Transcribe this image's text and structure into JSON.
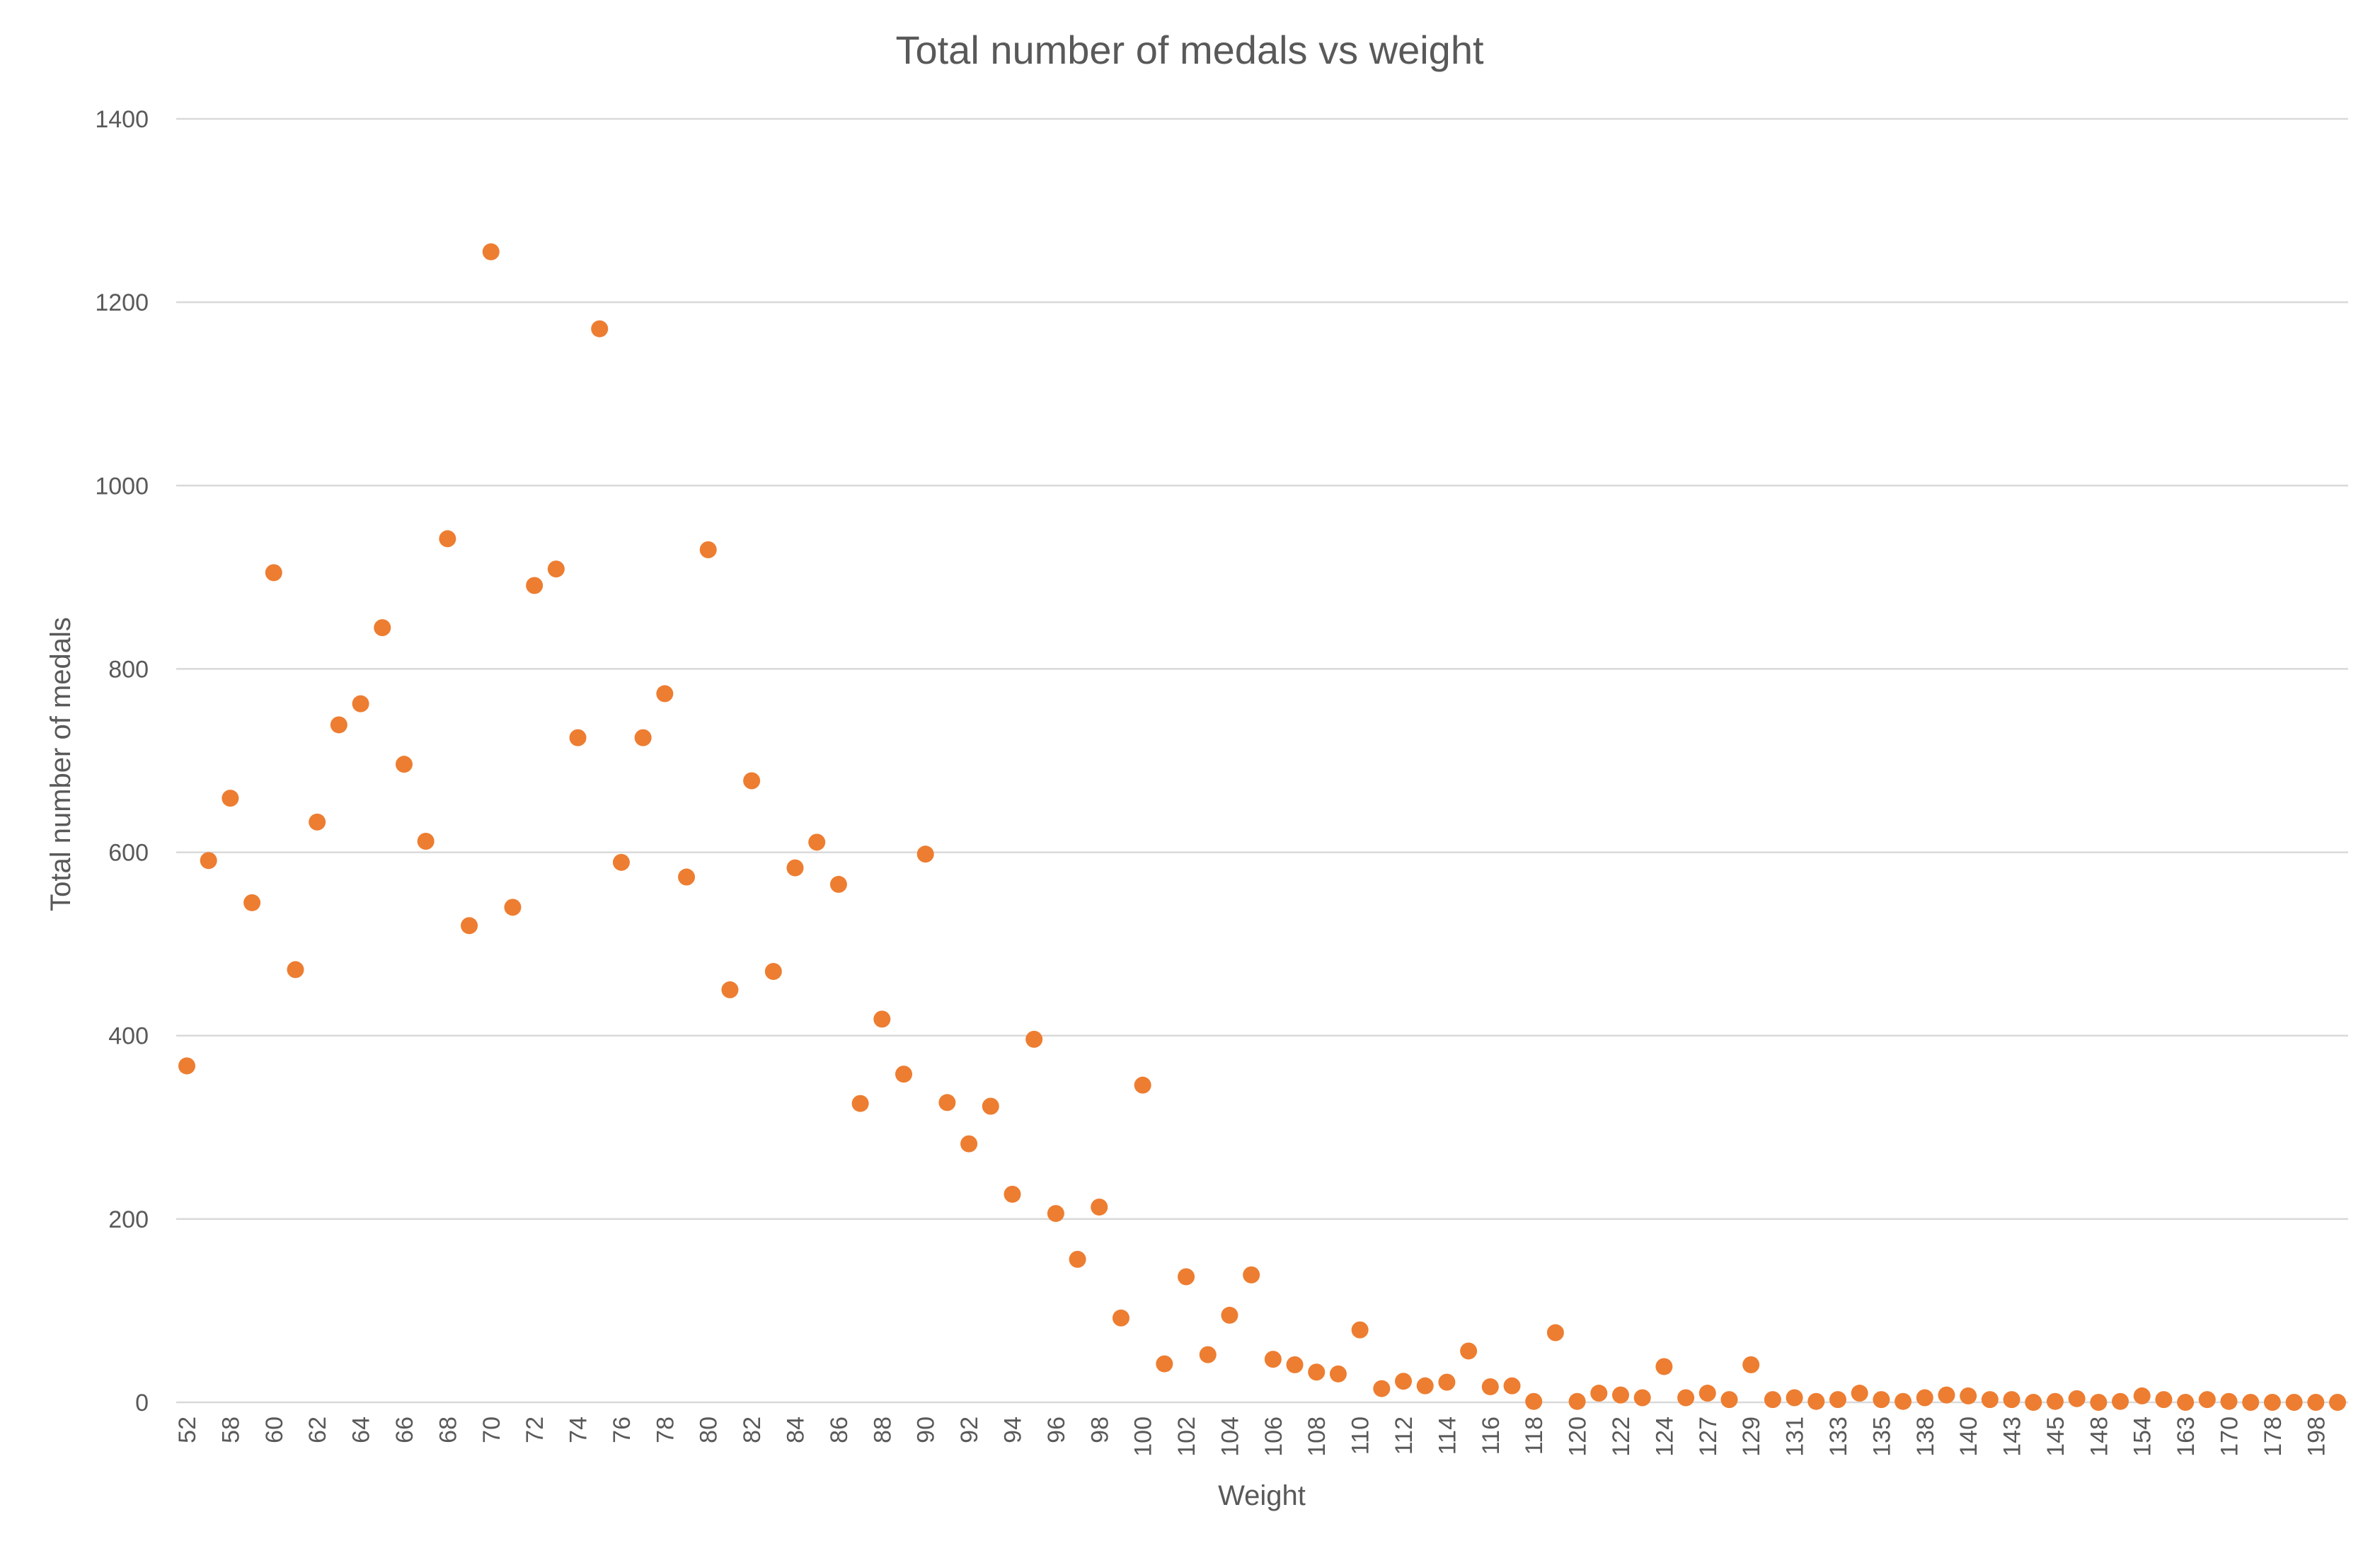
{
  "chart_data": {
    "type": "scatter",
    "title": "Total number of medals vs weight",
    "xlabel": "Weight",
    "ylabel": "Total number of medals",
    "ylim": [
      0,
      1400
    ],
    "yticks": [
      "0",
      "200",
      "400",
      "600",
      "800",
      "1000",
      "1200",
      "1400"
    ],
    "grid": true,
    "legend": "none",
    "x_axis_kind": "category",
    "x_tick_labels": [
      "52",
      "58",
      "60",
      "62",
      "64",
      "66",
      "68",
      "70",
      "72",
      "74",
      "76",
      "78",
      "80",
      "82",
      "84",
      "86",
      "88",
      "90",
      "92",
      "94",
      "96",
      "98",
      "100",
      "102",
      "104",
      "106",
      "108",
      "110",
      "112",
      "114",
      "116",
      "118",
      "120",
      "122",
      "124",
      "127",
      "129",
      "131",
      "133",
      "135",
      "138",
      "140",
      "143",
      "145",
      "148",
      "154",
      "163",
      "170",
      "178",
      "198"
    ],
    "series_color": "#ED7D31",
    "points": [
      {
        "x": "52",
        "y": 367
      },
      {
        "x": "",
        "y": 591
      },
      {
        "x": "58",
        "y": 659
      },
      {
        "x": "",
        "y": 545
      },
      {
        "x": "60",
        "y": 905
      },
      {
        "x": "",
        "y": 472
      },
      {
        "x": "62",
        "y": 633
      },
      {
        "x": "",
        "y": 739
      },
      {
        "x": "64",
        "y": 762
      },
      {
        "x": "",
        "y": 845
      },
      {
        "x": "66",
        "y": 696
      },
      {
        "x": "",
        "y": 612
      },
      {
        "x": "68",
        "y": 942
      },
      {
        "x": "",
        "y": 520
      },
      {
        "x": "70",
        "y": 1255
      },
      {
        "x": "",
        "y": 540
      },
      {
        "x": "72",
        "y": 891
      },
      {
        "x": "",
        "y": 909
      },
      {
        "x": "74",
        "y": 725
      },
      {
        "x": "",
        "y": 1171
      },
      {
        "x": "76",
        "y": 589
      },
      {
        "x": "",
        "y": 725
      },
      {
        "x": "78",
        "y": 773
      },
      {
        "x": "",
        "y": 573
      },
      {
        "x": "80",
        "y": 930
      },
      {
        "x": "",
        "y": 450
      },
      {
        "x": "82",
        "y": 678
      },
      {
        "x": "",
        "y": 470
      },
      {
        "x": "84",
        "y": 583
      },
      {
        "x": "",
        "y": 611
      },
      {
        "x": "86",
        "y": 565
      },
      {
        "x": "",
        "y": 326
      },
      {
        "x": "88",
        "y": 418
      },
      {
        "x": "",
        "y": 358
      },
      {
        "x": "90",
        "y": 598
      },
      {
        "x": "",
        "y": 327
      },
      {
        "x": "92",
        "y": 282
      },
      {
        "x": "",
        "y": 323
      },
      {
        "x": "94",
        "y": 227
      },
      {
        "x": "",
        "y": 396
      },
      {
        "x": "96",
        "y": 206
      },
      {
        "x": "",
        "y": 156
      },
      {
        "x": "98",
        "y": 213
      },
      {
        "x": "",
        "y": 92
      },
      {
        "x": "100",
        "y": 346
      },
      {
        "x": "",
        "y": 42
      },
      {
        "x": "102",
        "y": 137
      },
      {
        "x": "",
        "y": 52
      },
      {
        "x": "104",
        "y": 95
      },
      {
        "x": "",
        "y": 139
      },
      {
        "x": "106",
        "y": 47
      },
      {
        "x": "",
        "y": 41
      },
      {
        "x": "108",
        "y": 33
      },
      {
        "x": "",
        "y": 31
      },
      {
        "x": "110",
        "y": 79
      },
      {
        "x": "",
        "y": 15
      },
      {
        "x": "112",
        "y": 23
      },
      {
        "x": "",
        "y": 18
      },
      {
        "x": "114",
        "y": 22
      },
      {
        "x": "",
        "y": 56
      },
      {
        "x": "116",
        "y": 17
      },
      {
        "x": "",
        "y": 18
      },
      {
        "x": "118",
        "y": 1
      },
      {
        "x": "",
        "y": 76
      },
      {
        "x": "120",
        "y": 1
      },
      {
        "x": "",
        "y": 10
      },
      {
        "x": "122",
        "y": 8
      },
      {
        "x": "",
        "y": 5
      },
      {
        "x": "124",
        "y": 39
      },
      {
        "x": "",
        "y": 5
      },
      {
        "x": "127",
        "y": 10
      },
      {
        "x": "",
        "y": 3
      },
      {
        "x": "129",
        "y": 41
      },
      {
        "x": "",
        "y": 3
      },
      {
        "x": "131",
        "y": 5
      },
      {
        "x": "",
        "y": 1
      },
      {
        "x": "133",
        "y": 3
      },
      {
        "x": "",
        "y": 10
      },
      {
        "x": "135",
        "y": 3
      },
      {
        "x": "",
        "y": 1
      },
      {
        "x": "138",
        "y": 5
      },
      {
        "x": "",
        "y": 8
      },
      {
        "x": "140",
        "y": 7
      },
      {
        "x": "",
        "y": 3
      },
      {
        "x": "143",
        "y": 3
      },
      {
        "x": "",
        "y": 0
      },
      {
        "x": "145",
        "y": 1
      },
      {
        "x": "",
        "y": 4
      },
      {
        "x": "148",
        "y": 0
      },
      {
        "x": "",
        "y": 1
      },
      {
        "x": "154",
        "y": 7
      },
      {
        "x": "",
        "y": 3
      },
      {
        "x": "163",
        "y": 0
      },
      {
        "x": "",
        "y": 3
      },
      {
        "x": "170",
        "y": 1
      },
      {
        "x": "",
        "y": 0
      },
      {
        "x": "178",
        "y": 0
      },
      {
        "x": "",
        "y": 0
      },
      {
        "x": "198",
        "y": 0
      },
      {
        "x": "",
        "y": 0
      }
    ]
  }
}
